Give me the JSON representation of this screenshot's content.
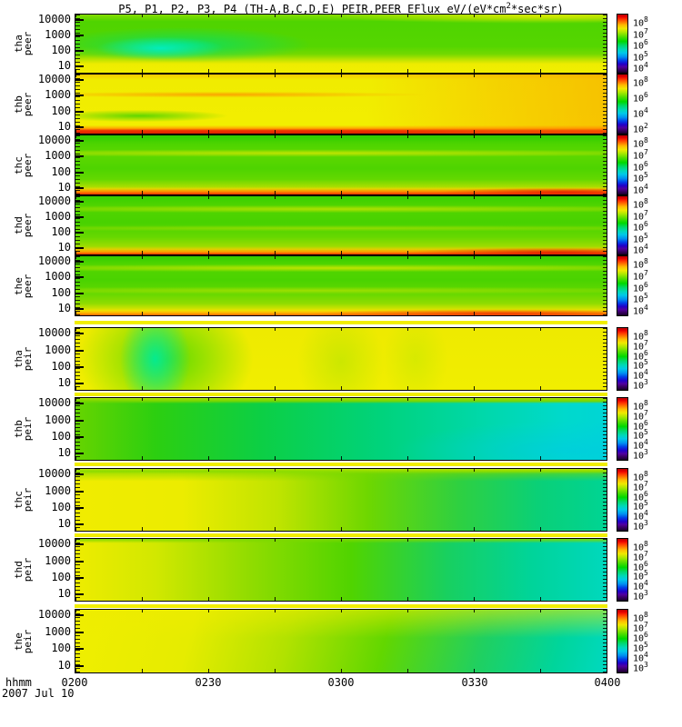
{
  "title": {
    "pre": "P5, P1, P2, P3, P4 (TH-A,B,C,D,E) PEIR,PEER EFlux eV/(eV*cm",
    "sup": "2",
    "post": "*sec*sr)"
  },
  "colorbar": {
    "base": "10"
  },
  "xaxis": {
    "unit": "hhmm",
    "date": "2007 Jul 10",
    "ticks": [
      "0200",
      "0230",
      "0300",
      "0330",
      "0400"
    ]
  },
  "yaxis": {
    "ticks": [
      "10000",
      "1000",
      "100",
      "10"
    ]
  },
  "chart_data": {
    "type": "heatmap",
    "subtype": "energy-time spectrogram stack",
    "title": "P5, P1, P2, P3, P4 (TH-A,B,C,D,E) PEIR,PEER EFlux eV/(eV*cm2*sec*sr)",
    "flux_units": "eV/(eV*cm2*sec*sr)",
    "x_axis": {
      "label": "hhmm",
      "date": "2007 Jul 10",
      "ticks": [
        "0200",
        "0230",
        "0300",
        "0330",
        "0400"
      ],
      "start": "0200",
      "end": "0400"
    },
    "y_axis": {
      "scale": "log",
      "ticks": [
        10000,
        1000,
        100,
        10
      ]
    },
    "colorscale": "rainbow (red=high flux, yellow-green=mid, blue-purple=low)",
    "legend_position": "right colorbar per panel",
    "grid": false,
    "panels": [
      {
        "sc": "tha",
        "inst": "peer",
        "colorbar_exponents": [
          "8",
          "7",
          "6",
          "5",
          "4"
        ],
        "pattern": "green band; cyan-teal high-flux blob 0200-0240 at mid energies; yellow band below ~30 eV"
      },
      {
        "sc": "thb",
        "inst": "peer",
        "colorbar_exponents": [
          "8",
          "6",
          "4",
          "2"
        ],
        "pattern": "yellow-orange throughout; green patch near 100 eV before 0215; intense red band at lowest energies; orange streak near 1000 eV"
      },
      {
        "sc": "thc",
        "inst": "peer",
        "colorbar_exponents": [
          "8",
          "7",
          "6",
          "5",
          "4"
        ],
        "pattern": "green with yellow streak near 1000 eV; orange-red band at lowest energies, strongest after 0340"
      },
      {
        "sc": "thd",
        "inst": "peer",
        "colorbar_exponents": [
          "8",
          "7",
          "6",
          "5",
          "4"
        ],
        "pattern": "green with yellow-green streaks; orange-red band at lowest energies, red at right edge"
      },
      {
        "sc": "the",
        "inst": "peer",
        "colorbar_exponents": [
          "8",
          "7",
          "6",
          "5",
          "4"
        ],
        "pattern": "green with yellow streaks; yellow-orange bottom band turning red after 0330"
      },
      {
        "sc": "tha",
        "inst": "peir",
        "colorbar_exponents": [
          "8",
          "7",
          "6",
          "5",
          "4",
          "3"
        ],
        "pattern": "yellow; strong green-teal vertical band 0205-0225; faint green vertical bands near 0300 and 0315"
      },
      {
        "sc": "thb",
        "inst": "peir",
        "colorbar_exponents": [
          "8",
          "7",
          "6",
          "5",
          "4",
          "3"
        ],
        "pattern": "green at 0200 fading smoothly to cyan by 0400; thin yellow-green strip at top"
      },
      {
        "sc": "thc",
        "inst": "peir",
        "colorbar_exponents": [
          "8",
          "7",
          "6",
          "5",
          "4",
          "3"
        ],
        "pattern": "bright yellow before 0230 grading to green then teal by 0400; yellow-green strip at top"
      },
      {
        "sc": "thd",
        "inst": "peir",
        "colorbar_exponents": [
          "8",
          "7",
          "6",
          "5",
          "4",
          "3"
        ],
        "pattern": "yellow to green to teal gradient across time; green strip at top"
      },
      {
        "sc": "the",
        "inst": "peir",
        "colorbar_exponents": [
          "8",
          "7",
          "6",
          "5",
          "4",
          "3"
        ],
        "pattern": "yellow at top-left fading to green-teal toward bottom-right"
      }
    ]
  }
}
